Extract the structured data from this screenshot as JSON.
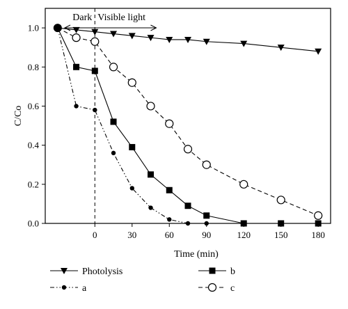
{
  "chart_data": {
    "type": "line",
    "xlabel": "Time (min)",
    "ylabel": "C/Co",
    "xlim": [
      -40,
      190
    ],
    "ylim": [
      0.0,
      1.1
    ],
    "x_ticks": [
      0,
      30,
      60,
      90,
      120,
      150,
      180
    ],
    "y_ticks": [
      0.0,
      0.2,
      0.4,
      0.6,
      0.8,
      1.0
    ],
    "grid": false,
    "legend_position": "bottom",
    "annotations": {
      "dark_label": "Dark",
      "light_label": "Visible light",
      "divider_x": 0
    },
    "series": [
      {
        "name": "Photolysis",
        "marker": "triangle-down",
        "line_style": "solid",
        "x": [
          -30,
          -15,
          0,
          15,
          30,
          45,
          60,
          75,
          90,
          120,
          150,
          180
        ],
        "y": [
          1.0,
          0.99,
          0.98,
          0.97,
          0.96,
          0.95,
          0.94,
          0.94,
          0.93,
          0.92,
          0.9,
          0.88
        ]
      },
      {
        "name": "a",
        "marker": "circle-filled-small",
        "line_style": "dash-dot-dot",
        "x": [
          -30,
          -15,
          0,
          15,
          30,
          45,
          60,
          75,
          90,
          120,
          150,
          180
        ],
        "y": [
          1.0,
          0.6,
          0.58,
          0.36,
          0.18,
          0.08,
          0.02,
          0.0,
          0.0,
          0.0,
          0.0,
          0.0
        ]
      },
      {
        "name": "b",
        "marker": "square",
        "line_style": "solid",
        "x": [
          -30,
          -15,
          0,
          15,
          30,
          45,
          60,
          75,
          90,
          120,
          150,
          180
        ],
        "y": [
          1.0,
          0.8,
          0.78,
          0.52,
          0.39,
          0.25,
          0.17,
          0.09,
          0.04,
          0.0,
          0.0,
          0.0
        ]
      },
      {
        "name": "c",
        "marker": "circle-open",
        "line_style": "dashed",
        "x": [
          -30,
          -15,
          0,
          15,
          30,
          45,
          60,
          75,
          90,
          120,
          150,
          180
        ],
        "y": [
          1.0,
          0.95,
          0.93,
          0.8,
          0.72,
          0.6,
          0.51,
          0.38,
          0.3,
          0.2,
          0.12,
          0.04
        ]
      }
    ]
  }
}
